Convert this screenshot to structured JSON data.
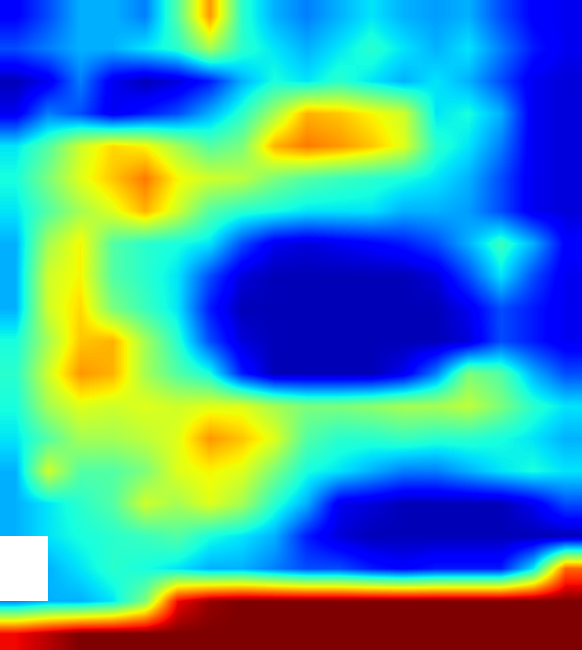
{
  "chart_data": {
    "type": "heatmap",
    "color": "jet",
    "tick_labels": false,
    "zlim": [
      0,
      1
    ],
    "cells": [
      [
        0.12,
        0.2,
        0.3,
        0.3,
        0.25,
        0.45,
        0.75,
        0.4,
        0.3,
        0.25,
        0.3,
        0.35,
        0.3,
        0.28,
        0.3,
        0.2,
        0.12,
        0.1
      ],
      [
        0.2,
        0.25,
        0.3,
        0.3,
        0.35,
        0.4,
        0.55,
        0.4,
        0.35,
        0.3,
        0.35,
        0.4,
        0.35,
        0.3,
        0.35,
        0.25,
        0.15,
        0.1
      ],
      [
        0.05,
        0.1,
        0.25,
        0.1,
        0.05,
        0.08,
        0.15,
        0.3,
        0.38,
        0.35,
        0.4,
        0.35,
        0.3,
        0.35,
        0.3,
        0.2,
        0.1,
        0.08
      ],
      [
        0.1,
        0.25,
        0.2,
        0.1,
        0.15,
        0.2,
        0.3,
        0.4,
        0.55,
        0.72,
        0.7,
        0.65,
        0.6,
        0.35,
        0.38,
        0.3,
        0.1,
        0.08
      ],
      [
        0.35,
        0.45,
        0.6,
        0.68,
        0.65,
        0.55,
        0.45,
        0.5,
        0.72,
        0.78,
        0.75,
        0.7,
        0.62,
        0.4,
        0.35,
        0.25,
        0.1,
        0.08
      ],
      [
        0.38,
        0.5,
        0.62,
        0.7,
        0.78,
        0.65,
        0.6,
        0.58,
        0.5,
        0.45,
        0.42,
        0.4,
        0.38,
        0.35,
        0.3,
        0.2,
        0.1,
        0.08
      ],
      [
        0.35,
        0.45,
        0.55,
        0.62,
        0.72,
        0.6,
        0.45,
        0.4,
        0.38,
        0.35,
        0.35,
        0.35,
        0.3,
        0.3,
        0.28,
        0.2,
        0.1,
        0.08
      ],
      [
        0.3,
        0.55,
        0.65,
        0.45,
        0.4,
        0.38,
        0.35,
        0.2,
        0.1,
        0.08,
        0.1,
        0.12,
        0.15,
        0.2,
        0.3,
        0.42,
        0.3,
        0.12
      ],
      [
        0.3,
        0.6,
        0.65,
        0.45,
        0.4,
        0.35,
        0.2,
        0.08,
        0.05,
        0.05,
        0.05,
        0.05,
        0.05,
        0.08,
        0.2,
        0.35,
        0.2,
        0.1
      ],
      [
        0.3,
        0.6,
        0.68,
        0.5,
        0.42,
        0.35,
        0.15,
        0.05,
        0.05,
        0.05,
        0.05,
        0.05,
        0.05,
        0.05,
        0.1,
        0.2,
        0.15,
        0.1
      ],
      [
        0.38,
        0.55,
        0.7,
        0.72,
        0.55,
        0.4,
        0.2,
        0.08,
        0.05,
        0.05,
        0.05,
        0.05,
        0.05,
        0.05,
        0.08,
        0.2,
        0.15,
        0.1
      ],
      [
        0.4,
        0.6,
        0.75,
        0.72,
        0.55,
        0.45,
        0.38,
        0.15,
        0.05,
        0.05,
        0.05,
        0.05,
        0.1,
        0.25,
        0.5,
        0.45,
        0.3,
        0.2
      ],
      [
        0.38,
        0.55,
        0.62,
        0.6,
        0.62,
        0.6,
        0.62,
        0.62,
        0.55,
        0.5,
        0.5,
        0.52,
        0.55,
        0.55,
        0.58,
        0.5,
        0.4,
        0.35
      ],
      [
        0.35,
        0.45,
        0.55,
        0.55,
        0.58,
        0.62,
        0.75,
        0.7,
        0.62,
        0.45,
        0.4,
        0.4,
        0.42,
        0.4,
        0.4,
        0.38,
        0.35,
        0.3
      ],
      [
        0.3,
        0.6,
        0.45,
        0.45,
        0.5,
        0.62,
        0.65,
        0.62,
        0.5,
        0.38,
        0.35,
        0.3,
        0.25,
        0.25,
        0.3,
        0.35,
        0.38,
        0.35
      ],
      [
        0.3,
        0.35,
        0.4,
        0.45,
        0.6,
        0.55,
        0.62,
        0.55,
        0.4,
        0.3,
        0.1,
        0.08,
        0.05,
        0.05,
        0.05,
        0.05,
        0.1,
        0.2
      ],
      [
        0.3,
        0.35,
        0.38,
        0.4,
        0.42,
        0.45,
        0.38,
        0.35,
        0.3,
        0.15,
        0.08,
        0.05,
        0.05,
        0.05,
        0.05,
        0.05,
        0.05,
        0.05
      ],
      [
        null,
        0.3,
        0.35,
        0.4,
        0.38,
        0.35,
        0.3,
        0.3,
        0.25,
        0.2,
        0.2,
        0.15,
        0.12,
        0.15,
        0.15,
        0.15,
        0.35,
        0.8
      ],
      [
        0.25,
        0.3,
        0.3,
        0.35,
        0.5,
        0.9,
        0.98,
        1,
        1,
        1,
        1,
        1,
        1,
        1,
        1,
        1,
        1,
        1
      ],
      [
        0.9,
        0.95,
        1,
        1,
        1,
        1,
        1,
        1,
        1,
        1,
        1,
        1,
        1,
        1,
        1,
        1,
        1,
        1
      ]
    ]
  }
}
